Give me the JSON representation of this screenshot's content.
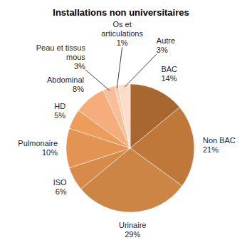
{
  "chart_data": {
    "type": "pie",
    "title": "Installations non universitaires",
    "categories": [
      "BAC",
      "Non BAC",
      "Urinaire",
      "ISO",
      "Pulmonaire",
      "HD",
      "Abdominal",
      "Peau et tissus mous",
      "Os et articulations",
      "Autre"
    ],
    "values": [
      14,
      21,
      29,
      6,
      10,
      5,
      8,
      3,
      1,
      3
    ],
    "value_labels": [
      "14%",
      "21%",
      "29%",
      "6%",
      "10%",
      "5%",
      "8%",
      "3%",
      "1%",
      "3%"
    ],
    "colors": [
      "#a8672f",
      "#c0783a",
      "#cd8546",
      "#d68b4b",
      "#e39352",
      "#ee9c5c",
      "#f4ad7b",
      "#f7be98",
      "#f9cfb4",
      "#fbdccb"
    ],
    "data_labels": true
  }
}
